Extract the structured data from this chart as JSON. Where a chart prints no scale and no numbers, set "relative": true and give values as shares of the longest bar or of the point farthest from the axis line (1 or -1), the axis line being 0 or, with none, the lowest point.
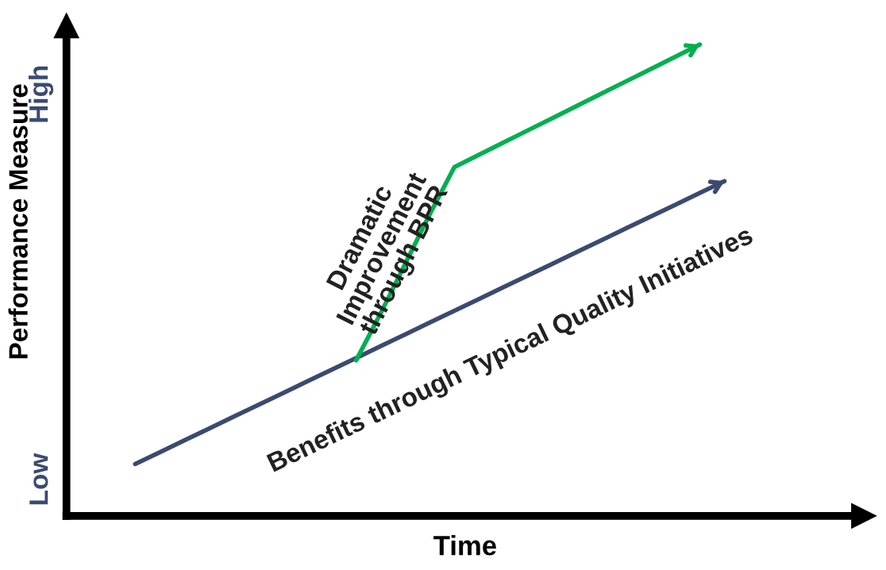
{
  "chart_data": {
    "type": "line",
    "relative": true,
    "xlabel": "Time",
    "ylabel": "Performance Measure",
    "annotations": [
      "Low",
      "High"
    ],
    "categories": [
      null,
      null,
      null,
      null,
      null,
      null,
      null,
      null,
      null,
      null,
      null,
      null,
      null,
      null,
      null,
      null,
      null,
      null,
      null,
      null,
      null,
      null,
      null,
      null,
      null
    ],
    "series": [
      {
        "name": "Benefits through Typical Quality Initiatives",
        "color": "#3b4a70",
        "values": [
          0.11,
          0.135,
          0.16,
          0.185,
          0.21,
          0.235,
          0.26,
          0.285,
          0.31,
          0.335,
          0.36,
          0.385,
          0.41,
          0.435,
          0.46,
          0.485,
          0.51,
          0.535,
          0.56,
          0.585,
          0.61,
          0.635,
          0.66,
          0.685,
          0.71
        ]
      },
      {
        "name": "Dramatic Improvement through BPR",
        "color": "#00b050",
        "values": [
          null,
          null,
          null,
          null,
          null,
          null,
          null,
          null,
          null,
          0.33,
          0.43,
          0.535,
          0.64,
          0.74,
          0.766,
          0.792,
          0.818,
          0.844,
          0.87,
          0.896,
          0.922,
          0.948,
          0.974,
          1.0,
          null
        ]
      }
    ],
    "marker": "none",
    "line_style": "solid"
  }
}
